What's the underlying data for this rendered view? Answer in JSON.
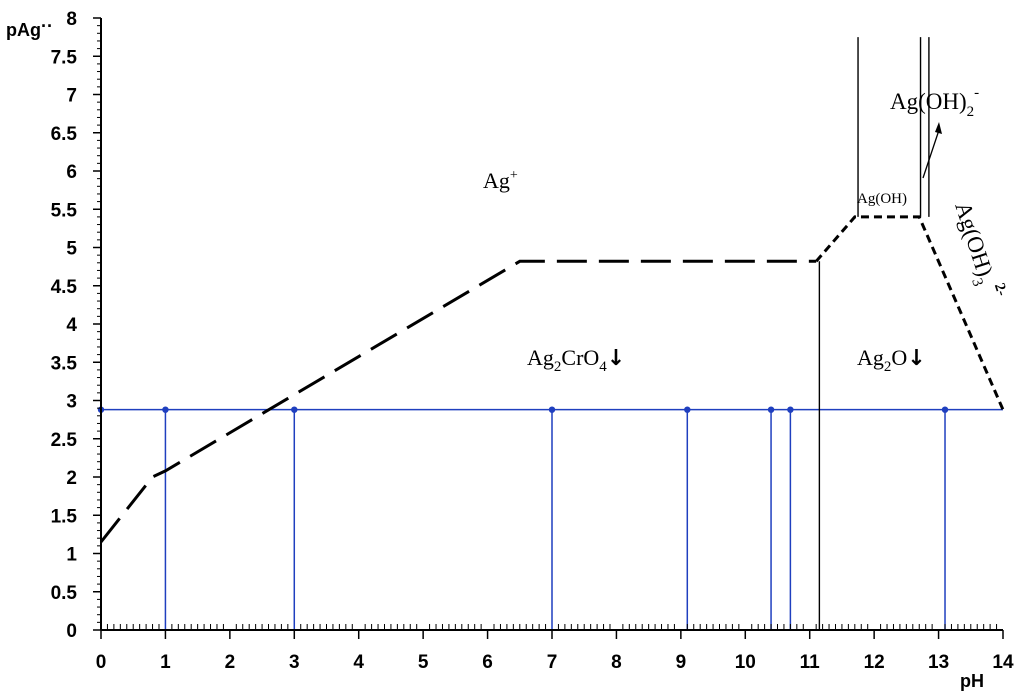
{
  "chart_data": {
    "type": "line",
    "xlabel": "pH",
    "ylabel": "pAg",
    "ylabel_suffix": "··",
    "xlim": [
      0,
      14
    ],
    "ylim": [
      0,
      8
    ],
    "x_ticks": [
      0,
      1,
      2,
      3,
      4,
      5,
      6,
      7,
      8,
      9,
      10,
      11,
      12,
      13,
      14
    ],
    "y_ticks": [
      0,
      0.5,
      1,
      1.5,
      2,
      2.5,
      3,
      3.5,
      4,
      4.5,
      5,
      5.5,
      6,
      6.5,
      7,
      7.5,
      8
    ],
    "x_tick_labels": [
      "0",
      "1",
      "2",
      "3",
      "4",
      "5",
      "6",
      "7",
      "8",
      "9",
      "10",
      "11",
      "12",
      "13",
      "14"
    ],
    "y_tick_labels": [
      "0",
      "0.5",
      "1",
      "1.5",
      "2",
      "2.5",
      "3",
      "3.5",
      "4",
      "4.5",
      "5",
      "5.5",
      "6",
      "6.5",
      "7",
      "7.5",
      "8"
    ],
    "colors": {
      "boundary": "#000000",
      "reference": "#1f3fbf"
    },
    "boundary_long_dash": [
      [
        0,
        1.15
      ],
      [
        0.8,
        2.0
      ],
      [
        1.0,
        2.08
      ],
      [
        6.5,
        4.82
      ],
      [
        11.1,
        4.82
      ]
    ],
    "boundary_short_dash": [
      [
        11.1,
        4.82
      ],
      [
        11.7,
        5.4
      ],
      [
        12.7,
        5.4
      ],
      [
        14.0,
        2.88
      ]
    ],
    "boundary_solid_verticals": [
      {
        "x": 11.15,
        "y_from": 0,
        "y_to": 4.82
      },
      {
        "x": 11.75,
        "y_from": 5.4,
        "y_to": 7.75
      },
      {
        "x": 12.72,
        "y_from": 5.4,
        "y_to": 7.75
      },
      {
        "x": 12.85,
        "y_from": 5.4,
        "y_to": 7.75
      }
    ],
    "reference_level": 2.88,
    "reference_points_x": [
      0,
      1,
      3,
      7,
      9.1,
      10.4,
      10.7,
      13.1
    ],
    "species_labels": {
      "ag_ion": {
        "base": "Ag",
        "sup": "+"
      },
      "ag2cro4": {
        "p1": "Ag",
        "s1": "2",
        "p2": "CrO",
        "s2": "4",
        "arrow": "↓"
      },
      "ag2o": {
        "p1": "Ag",
        "s1": "2",
        "p2": "O",
        "arrow": "↓"
      },
      "agoh": {
        "text": "Ag(OH)"
      },
      "agoh2": {
        "base": "Ag(OH)",
        "sub": "2",
        "sup": "-"
      },
      "agoh3": {
        "base": "Ag(OH)",
        "sub": "3",
        "sup": "2-"
      }
    }
  }
}
